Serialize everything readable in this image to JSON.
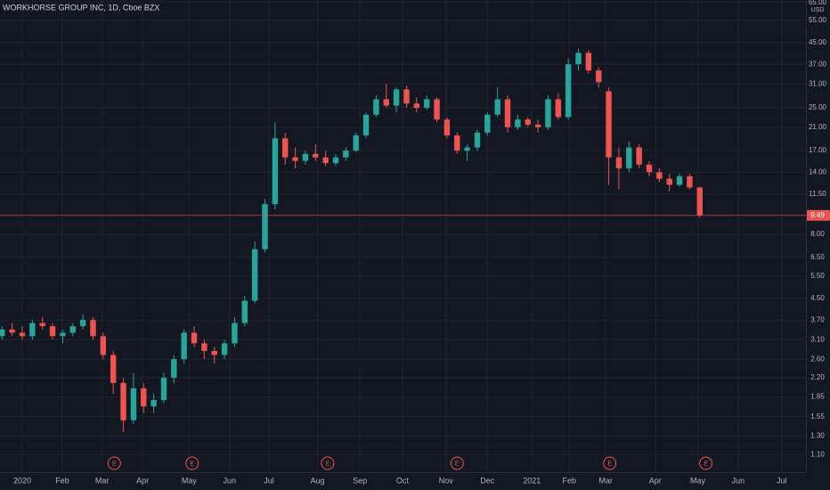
{
  "chart_data": {
    "type": "candlestick",
    "title": "WORKHORSE GROUP INC, 1D, Cboe BZX",
    "currency": "USD",
    "log_scale": true,
    "grid": true,
    "up_color": "#26a69a",
    "down_color": "#ef5350",
    "x": [
      -2,
      -1,
      0,
      1,
      2,
      3,
      4,
      5,
      6,
      7,
      8,
      9,
      10,
      11,
      12,
      13,
      14,
      15,
      16,
      17,
      18,
      19,
      20,
      21,
      22,
      23,
      24,
      25,
      26,
      27,
      28,
      29,
      30,
      31,
      32,
      33,
      34,
      35,
      36,
      37,
      38,
      39,
      40,
      41,
      42,
      43,
      44,
      45,
      46,
      47,
      48,
      49,
      50,
      51,
      52,
      53,
      54,
      55,
      56,
      57,
      58,
      59,
      60,
      61,
      62,
      63,
      64,
      65,
      66,
      67
    ],
    "open": [
      3.2,
      3.4,
      3.3,
      3.2,
      3.6,
      3.5,
      3.2,
      3.3,
      3.5,
      3.7,
      3.2,
      2.7,
      2.1,
      1.5,
      2.0,
      1.7,
      1.8,
      2.2,
      2.6,
      3.3,
      3.0,
      2.8,
      2.7,
      3.0,
      3.6,
      4.4,
      7.0,
      10.5,
      19.0,
      16.0,
      15.5,
      16.5,
      16.0,
      15.2,
      16.0,
      17.0,
      19.5,
      23.5,
      27.0,
      25.5,
      29.5,
      26.0,
      25.0,
      27.0,
      22.5,
      19.5,
      17.0,
      17.5,
      20.0,
      23.5,
      27.0,
      21.0,
      22.5,
      21.5,
      21.0,
      27.0,
      23.0,
      37.0,
      41.0,
      35.0,
      29.0,
      16.0,
      14.5,
      17.5,
      15.0,
      14.0,
      13.2,
      12.5,
      13.5,
      12.2
    ],
    "high": [
      3.5,
      3.6,
      3.5,
      3.7,
      3.8,
      3.6,
      3.4,
      3.6,
      3.9,
      3.8,
      3.3,
      2.8,
      2.2,
      2.3,
      2.1,
      1.9,
      2.3,
      2.7,
      3.4,
      3.5,
      3.1,
      2.9,
      3.1,
      3.8,
      4.6,
      7.5,
      11.0,
      22.0,
      20.0,
      17.5,
      17.0,
      18.0,
      17.0,
      16.5,
      17.5,
      20.0,
      24.0,
      28.0,
      31.0,
      30.0,
      30.5,
      27.5,
      28.0,
      27.5,
      23.0,
      20.0,
      18.0,
      20.5,
      24.0,
      30.0,
      28.0,
      23.5,
      23.0,
      22.5,
      28.0,
      28.5,
      39.0,
      42.5,
      42.0,
      36.0,
      30.0,
      17.5,
      18.5,
      18.0,
      15.5,
      14.5,
      13.8,
      13.8,
      13.8,
      12.3
    ],
    "low": [
      3.1,
      3.2,
      3.1,
      3.1,
      3.4,
      3.1,
      3.0,
      3.2,
      3.4,
      3.1,
      2.6,
      1.9,
      1.35,
      1.45,
      1.6,
      1.6,
      1.75,
      2.1,
      2.5,
      2.9,
      2.6,
      2.5,
      2.6,
      2.9,
      3.5,
      4.3,
      6.8,
      10.0,
      15.0,
      14.5,
      15.0,
      15.5,
      14.8,
      14.8,
      15.5,
      16.8,
      19.0,
      23.0,
      25.0,
      24.0,
      25.0,
      24.0,
      24.5,
      22.0,
      19.0,
      16.5,
      15.5,
      17.0,
      19.5,
      23.0,
      20.0,
      20.5,
      21.0,
      20.0,
      20.5,
      22.5,
      22.5,
      35.0,
      34.0,
      30.0,
      12.5,
      12.0,
      14.0,
      14.5,
      13.5,
      12.8,
      11.8,
      12.3,
      12.0,
      9.3
    ],
    "close": [
      3.4,
      3.3,
      3.2,
      3.6,
      3.5,
      3.2,
      3.3,
      3.5,
      3.7,
      3.2,
      2.7,
      2.1,
      1.5,
      2.0,
      1.7,
      1.8,
      2.2,
      2.6,
      3.3,
      3.0,
      2.8,
      2.7,
      3.0,
      3.6,
      4.4,
      7.0,
      10.5,
      19.0,
      16.0,
      15.5,
      16.5,
      16.0,
      15.2,
      16.0,
      17.0,
      19.5,
      23.5,
      27.0,
      25.5,
      29.5,
      26.0,
      25.0,
      27.0,
      22.5,
      19.5,
      17.0,
      17.5,
      20.0,
      23.5,
      27.0,
      21.0,
      22.5,
      21.5,
      21.0,
      27.0,
      23.0,
      37.0,
      41.0,
      35.0,
      31.5,
      16.0,
      14.5,
      17.5,
      15.0,
      14.0,
      13.2,
      12.5,
      13.5,
      12.2,
      9.49
    ],
    "xlim": [
      -2.2,
      77.5
    ],
    "xticks": [
      {
        "value": 0,
        "label": "2020"
      },
      {
        "value": 3.96,
        "label": "Feb"
      },
      {
        "value": 7.9,
        "label": "Mar"
      },
      {
        "value": 11.9,
        "label": "Apr"
      },
      {
        "value": 16.5,
        "label": "May"
      },
      {
        "value": 20.5,
        "label": "Jun"
      },
      {
        "value": 24.4,
        "label": "Jul"
      },
      {
        "value": 29.2,
        "label": "Aug"
      },
      {
        "value": 33.4,
        "label": "Sep"
      },
      {
        "value": 37.6,
        "label": "Oct"
      },
      {
        "value": 41.9,
        "label": "Nov"
      },
      {
        "value": 46,
        "label": "Dec"
      },
      {
        "value": 50.4,
        "label": "2021"
      },
      {
        "value": 54.1,
        "label": "Feb"
      },
      {
        "value": 57.7,
        "label": "Mar"
      },
      {
        "value": 62.6,
        "label": "Apr"
      },
      {
        "value": 66.8,
        "label": "May"
      },
      {
        "value": 70.8,
        "label": "Jun"
      },
      {
        "value": 75.1,
        "label": "Jul"
      }
    ],
    "ylim": [
      0.94,
      66
    ],
    "yticks": [
      {
        "value": 65,
        "label": "65.00"
      },
      {
        "value": 55,
        "label": "55.00"
      },
      {
        "value": 45,
        "label": "45.00"
      },
      {
        "value": 37,
        "label": "37.00"
      },
      {
        "value": 31,
        "label": "31.00"
      },
      {
        "value": 25,
        "label": "25.00"
      },
      {
        "value": 21,
        "label": "21.00"
      },
      {
        "value": 17,
        "label": "17.00"
      },
      {
        "value": 14,
        "label": "14.00"
      },
      {
        "value": 11.5,
        "label": "11.50"
      },
      {
        "value": 8,
        "label": "8.00"
      },
      {
        "value": 6.5,
        "label": "6.50"
      },
      {
        "value": 5.5,
        "label": "5.50"
      },
      {
        "value": 4.5,
        "label": "4.50"
      },
      {
        "value": 3.7,
        "label": "3.70"
      },
      {
        "value": 3.1,
        "label": "3.10"
      },
      {
        "value": 2.6,
        "label": "2.60"
      },
      {
        "value": 2.2,
        "label": "2.20"
      },
      {
        "value": 1.85,
        "label": "1.85"
      },
      {
        "value": 1.55,
        "label": "1.55"
      },
      {
        "value": 1.3,
        "label": "1.30"
      },
      {
        "value": 1.1,
        "label": "1.10"
      }
    ],
    "price_line": {
      "value": 9.49,
      "color": "#ef5350"
    },
    "earnings": {
      "x": [
        9.1,
        16.8,
        30.2,
        43,
        58.1,
        67.6
      ],
      "label": "E",
      "color": "#ef5350"
    }
  }
}
